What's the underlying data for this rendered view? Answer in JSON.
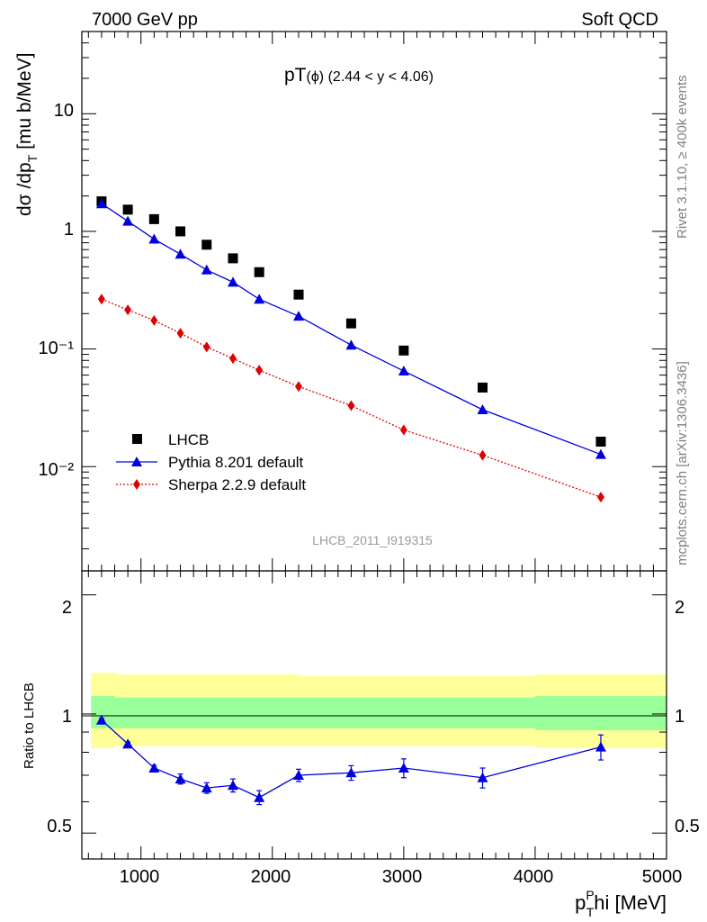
{
  "header": {
    "left": "7000 GeV pp",
    "right": "Soft QCD"
  },
  "side_labels": {
    "rivet": "Rivet 3.1.10, ≥ 400k events",
    "mcplots": "mcplots.cern.ch [arXiv:1306.3436]"
  },
  "main_panel": {
    "title": "pT",
    "title_phi": "(ϕ)",
    "title_range": " (2.44 < y < 4.06)",
    "ylabel": "dσ /dp",
    "ylabel_sub": "T",
    "ylabel_unit": " [mu b/MeV]",
    "watermark": "LHCB_2011_I919315",
    "ytick_labels": [
      "10⁻²",
      "10⁻¹",
      "1",
      "10"
    ]
  },
  "ratio_panel": {
    "ylabel": "Ratio to LHCB",
    "ytick_labels": [
      "0.5",
      "1",
      "2"
    ]
  },
  "xaxis": {
    "label_pre": "p",
    "label_sup": "P",
    "label_sub": "T",
    "label_post": "hi [MeV]",
    "tick_labels": [
      "1000",
      "2000",
      "3000",
      "4000",
      "5000"
    ]
  },
  "legend": [
    {
      "name": "LHCB",
      "color": "#000000",
      "marker": "square-icon"
    },
    {
      "name": "Pythia 8.201 default",
      "color": "#0000e0",
      "marker": "triangle-icon"
    },
    {
      "name": "Sherpa 2.2.9 default",
      "color": "#e00000",
      "marker": "diamond-icon"
    }
  ],
  "chart_data": [
    {
      "type": "scatter",
      "yscale": "log",
      "xlim": [
        550,
        5000
      ],
      "ylim": [
        0.0013,
        50
      ],
      "legend_position": "bottom-left",
      "x": [
        700,
        900,
        1100,
        1300,
        1500,
        1700,
        1900,
        2200,
        2600,
        3000,
        3600,
        4500
      ],
      "series": [
        {
          "name": "LHCB",
          "style": "markers",
          "color": "#000000",
          "values": [
            1.8,
            1.53,
            1.27,
            1.0,
            0.77,
            0.59,
            0.45,
            0.29,
            0.165,
            0.097,
            0.047,
            0.0163
          ]
        },
        {
          "name": "Pythia 8.201 default",
          "style": "line",
          "color": "#0000e0",
          "values": [
            1.72,
            1.22,
            0.86,
            0.64,
            0.47,
            0.37,
            0.265,
            0.19,
            0.108,
            0.065,
            0.0305,
            0.0127
          ]
        },
        {
          "name": "Sherpa 2.2.9 default",
          "style": "dotted",
          "color": "#e00000",
          "values": [
            0.265,
            0.215,
            0.175,
            0.136,
            0.104,
            0.083,
            0.066,
            0.048,
            0.033,
            0.0205,
            0.0125,
            0.0055
          ]
        }
      ]
    },
    {
      "type": "line",
      "yscale": "log",
      "xlim": [
        550,
        5000
      ],
      "ylim": [
        0.43,
        2.3
      ],
      "reference_line": 1,
      "bands": [
        {
          "color": "#ffff99",
          "segments": [
            [
              620,
              800,
              0.82,
              1.27
            ],
            [
              800,
              2200,
              0.83,
              1.26
            ],
            [
              2200,
              4000,
              0.83,
              1.25
            ],
            [
              4000,
              5000,
              0.82,
              1.26
            ]
          ]
        },
        {
          "color": "#99ff99",
          "segments": [
            [
              620,
              800,
              0.92,
              1.11
            ],
            [
              800,
              2200,
              0.92,
              1.1
            ],
            [
              2200,
              4000,
              0.92,
              1.1
            ],
            [
              4000,
              5000,
              0.91,
              1.11
            ]
          ]
        }
      ],
      "x": [
        700,
        900,
        1100,
        1300,
        1500,
        1700,
        1900,
        2200,
        2600,
        3000,
        3600,
        4500
      ],
      "series": [
        {
          "name": "Pythia 8.201 default",
          "color": "#0000e0",
          "values": [
            0.965,
            0.84,
            0.73,
            0.685,
            0.65,
            0.66,
            0.615,
            0.7,
            0.71,
            0.73,
            0.69,
            0.825
          ],
          "errors": [
            0.01,
            0.01,
            0.012,
            0.02,
            0.02,
            0.025,
            0.025,
            0.025,
            0.03,
            0.04,
            0.04,
            0.06
          ]
        }
      ]
    }
  ]
}
